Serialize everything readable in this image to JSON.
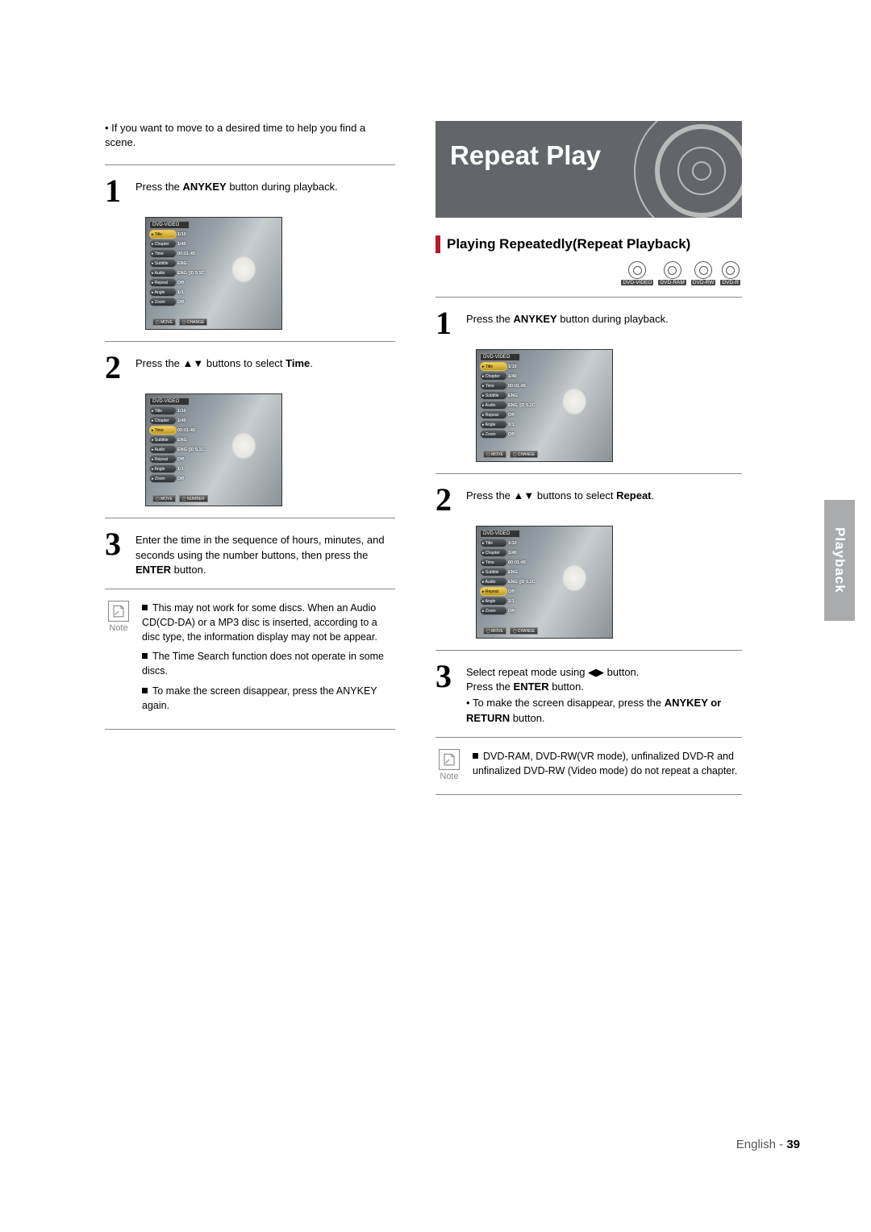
{
  "left": {
    "intro": "If you want to move to a desired time to help you find a scene.",
    "step1": {
      "pre": "Press the ",
      "bold": "ANYKEY",
      "post": " button during playback."
    },
    "step2": {
      "pre": "Press the ▲▼ buttons to select ",
      "bold": "Time",
      "post": "."
    },
    "step3": {
      "pre": "Enter the time in the sequence of hours, minutes, and seconds using the number buttons, then press the ",
      "bold": "ENTER",
      "post": " button."
    },
    "note_label": "Note",
    "note1": "This may not work for some discs. When an Audio CD(CD-DA) or a MP3 disc is inserted, according to a disc type, the information display may not be appear.",
    "note2": "The Time Search function does not operate in some discs.",
    "note3": "To make the screen disappear, press the ANYKEY again."
  },
  "right": {
    "title": "Repeat Play",
    "subhead": "Playing Repeatedly(Repeat Playback)",
    "badges": [
      "DVD-VIDEO",
      "DVD-RAM",
      "DVD-RW",
      "DVD-R"
    ],
    "step1": {
      "pre": "Press the ",
      "bold": "ANYKEY",
      "post": " button during playback."
    },
    "step2": {
      "pre": "Press the ▲▼ buttons to select ",
      "bold": "Repeat",
      "post": "."
    },
    "step3_l1": {
      "pre": "Select repeat mode using ◀▶ button."
    },
    "step3_l2": {
      "pre": "Press the ",
      "bold": "ENTER",
      "post": " button."
    },
    "step3_b": {
      "pre": "To make the screen disappear, press the ",
      "bold": "ANYKEY or RETURN",
      "post": " button."
    },
    "note_label": "Note",
    "note1": "DVD-RAM, DVD-RW(VR mode), unfinalized DVD-R and unfinalized DVD-RW (Video mode) do not repeat a chapter."
  },
  "osd": {
    "dvd_video": "DVD-VIDEO",
    "rows": [
      {
        "k": "Title",
        "v": "1/10"
      },
      {
        "k": "Chapter",
        "v": "1/40"
      },
      {
        "k": "Time",
        "v": "00:01:45"
      },
      {
        "k": "Subtitle",
        "v": "ENG"
      },
      {
        "k": "Audio",
        "v": "ENG ▯D 5.1C"
      },
      {
        "k": "Repeat",
        "v": "Off"
      },
      {
        "k": "Angle",
        "v": "1/1"
      },
      {
        "k": "Zoom",
        "v": "Off"
      }
    ],
    "foot_move": "▢ MOVE",
    "foot_change": "▢ CHANGE",
    "foot_number": "▢ NUMBER"
  },
  "side_tab": "Playback",
  "footer_lang": "English - ",
  "footer_page": "39",
  "colors": {
    "accent_red": "#b01c2e",
    "title_bg": "#62666a",
    "side_tab_bg": "#a9abad",
    "rule": "#888888"
  }
}
